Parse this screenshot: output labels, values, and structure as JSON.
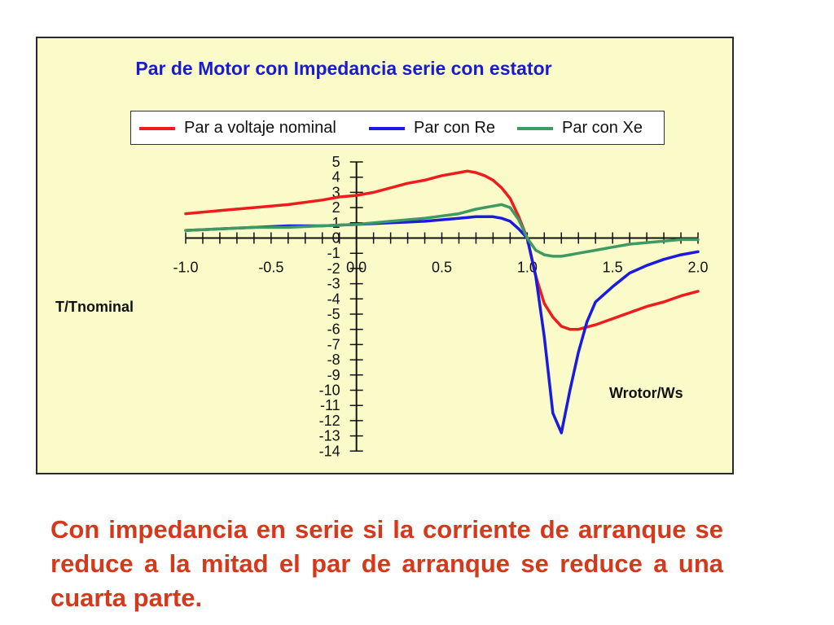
{
  "caption": "Con impedancia en serie si la corriente de arranque se reduce a la mitad el par de arranque se reduce a una cuarta parte.",
  "colors": {
    "background": "#fbfbc9",
    "title": "#1a1ad0",
    "caption": "#d5391c"
  },
  "chart_data": {
    "type": "line",
    "title": "Par de Motor con Impedancia serie con estator",
    "xlabel": "Wrotor/Ws",
    "ylabel": "T/Tnominal",
    "xlim": [
      -1.0,
      2.0
    ],
    "ylim": [
      -14,
      5
    ],
    "grid": false,
    "legend_position": "top",
    "x_tick_labels": [
      "-1.0",
      "-0.5",
      "0.0",
      "0.5",
      "1.0",
      "1.5",
      "2.0"
    ],
    "y_tick_labels": [
      "5",
      "4",
      "3",
      "2",
      "1",
      "0",
      "-1",
      "-2",
      "-3",
      "-4",
      "-5",
      "-6",
      "-7",
      "-8",
      "-9",
      "-10",
      "-11",
      "-12",
      "-13",
      "-14"
    ],
    "series": [
      {
        "name": "Par a voltaje nominal",
        "color": "#ee1c1c",
        "x": [
          -1.0,
          -0.8,
          -0.6,
          -0.4,
          -0.2,
          -0.1,
          0.0,
          0.1,
          0.2,
          0.3,
          0.4,
          0.5,
          0.6,
          0.65,
          0.7,
          0.75,
          0.8,
          0.85,
          0.9,
          0.95,
          1.0,
          1.05,
          1.1,
          1.15,
          1.2,
          1.25,
          1.3,
          1.4,
          1.5,
          1.6,
          1.7,
          1.8,
          1.9,
          2.0
        ],
        "y": [
          1.6,
          1.8,
          2.0,
          2.2,
          2.5,
          2.7,
          2.8,
          3.0,
          3.3,
          3.6,
          3.8,
          4.1,
          4.3,
          4.4,
          4.3,
          4.1,
          3.8,
          3.3,
          2.6,
          1.4,
          0.0,
          -2.5,
          -4.3,
          -5.2,
          -5.8,
          -6.0,
          -6.0,
          -5.7,
          -5.3,
          -4.9,
          -4.5,
          -4.2,
          -3.8,
          -3.5
        ]
      },
      {
        "name": "Par con Re",
        "color": "#1a1ae0",
        "x": [
          -1.0,
          -0.8,
          -0.6,
          -0.4,
          -0.2,
          0.0,
          0.2,
          0.4,
          0.6,
          0.7,
          0.8,
          0.85,
          0.9,
          0.95,
          1.0,
          1.05,
          1.1,
          1.15,
          1.2,
          1.25,
          1.3,
          1.35,
          1.4,
          1.5,
          1.6,
          1.7,
          1.8,
          1.9,
          2.0
        ],
        "y": [
          0.5,
          0.6,
          0.7,
          0.8,
          0.8,
          0.9,
          1.0,
          1.1,
          1.3,
          1.4,
          1.4,
          1.3,
          1.1,
          0.6,
          0.0,
          -2.5,
          -6.5,
          -11.5,
          -12.8,
          -10.0,
          -7.5,
          -5.5,
          -4.2,
          -3.2,
          -2.3,
          -1.8,
          -1.4,
          -1.1,
          -0.9
        ]
      },
      {
        "name": "Par con Xe",
        "color": "#3d9a62",
        "x": [
          -1.0,
          -0.8,
          -0.6,
          -0.4,
          -0.2,
          0.0,
          0.2,
          0.4,
          0.6,
          0.7,
          0.8,
          0.85,
          0.9,
          0.95,
          1.0,
          1.05,
          1.1,
          1.15,
          1.2,
          1.25,
          1.3,
          1.4,
          1.5,
          1.6,
          1.7,
          1.8,
          1.9,
          2.0
        ],
        "y": [
          0.5,
          0.6,
          0.7,
          0.7,
          0.8,
          0.9,
          1.1,
          1.3,
          1.6,
          1.9,
          2.1,
          2.2,
          2.0,
          1.2,
          0.0,
          -0.8,
          -1.1,
          -1.2,
          -1.2,
          -1.1,
          -1.0,
          -0.8,
          -0.6,
          -0.4,
          -0.3,
          -0.2,
          -0.1,
          -0.1
        ]
      }
    ]
  }
}
